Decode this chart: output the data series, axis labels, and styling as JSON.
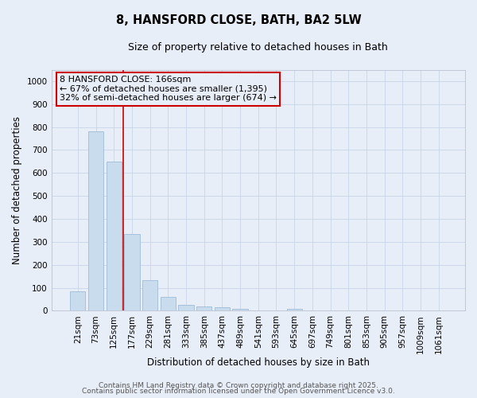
{
  "title_line1": "8, HANSFORD CLOSE, BATH, BA2 5LW",
  "title_line2": "Size of property relative to detached houses in Bath",
  "xlabel": "Distribution of detached houses by size in Bath",
  "ylabel": "Number of detached properties",
  "categories": [
    "21sqm",
    "73sqm",
    "125sqm",
    "177sqm",
    "229sqm",
    "281sqm",
    "333sqm",
    "385sqm",
    "437sqm",
    "489sqm",
    "541sqm",
    "593sqm",
    "645sqm",
    "697sqm",
    "749sqm",
    "801sqm",
    "853sqm",
    "905sqm",
    "957sqm",
    "1009sqm",
    "1061sqm"
  ],
  "values": [
    85,
    780,
    650,
    335,
    135,
    60,
    25,
    18,
    15,
    8,
    0,
    0,
    8,
    0,
    0,
    0,
    0,
    0,
    0,
    0,
    0
  ],
  "bar_color": "#c8dcee",
  "bar_edge_color": "#a0bcd8",
  "vline_x": 2.5,
  "vline_color": "#cc0000",
  "annotation_line1": "8 HANSFORD CLOSE: 166sqm",
  "annotation_line2": "← 67% of detached houses are smaller (1,395)",
  "annotation_line3": "32% of semi-detached houses are larger (674) →",
  "annotation_box_color": "#cc0000",
  "ylim": [
    0,
    1050
  ],
  "yticks": [
    0,
    100,
    200,
    300,
    400,
    500,
    600,
    700,
    800,
    900,
    1000
  ],
  "grid_color": "#c8d4e8",
  "bg_color": "#e8eef8",
  "plot_bg_color": "#e8eef8",
  "footer_line1": "Contains HM Land Registry data © Crown copyright and database right 2025.",
  "footer_line2": "Contains public sector information licensed under the Open Government Licence v3.0.",
  "title_fontsize": 10.5,
  "subtitle_fontsize": 9,
  "axis_label_fontsize": 8.5,
  "tick_fontsize": 7.5,
  "annotation_fontsize": 8,
  "footer_fontsize": 6.5
}
